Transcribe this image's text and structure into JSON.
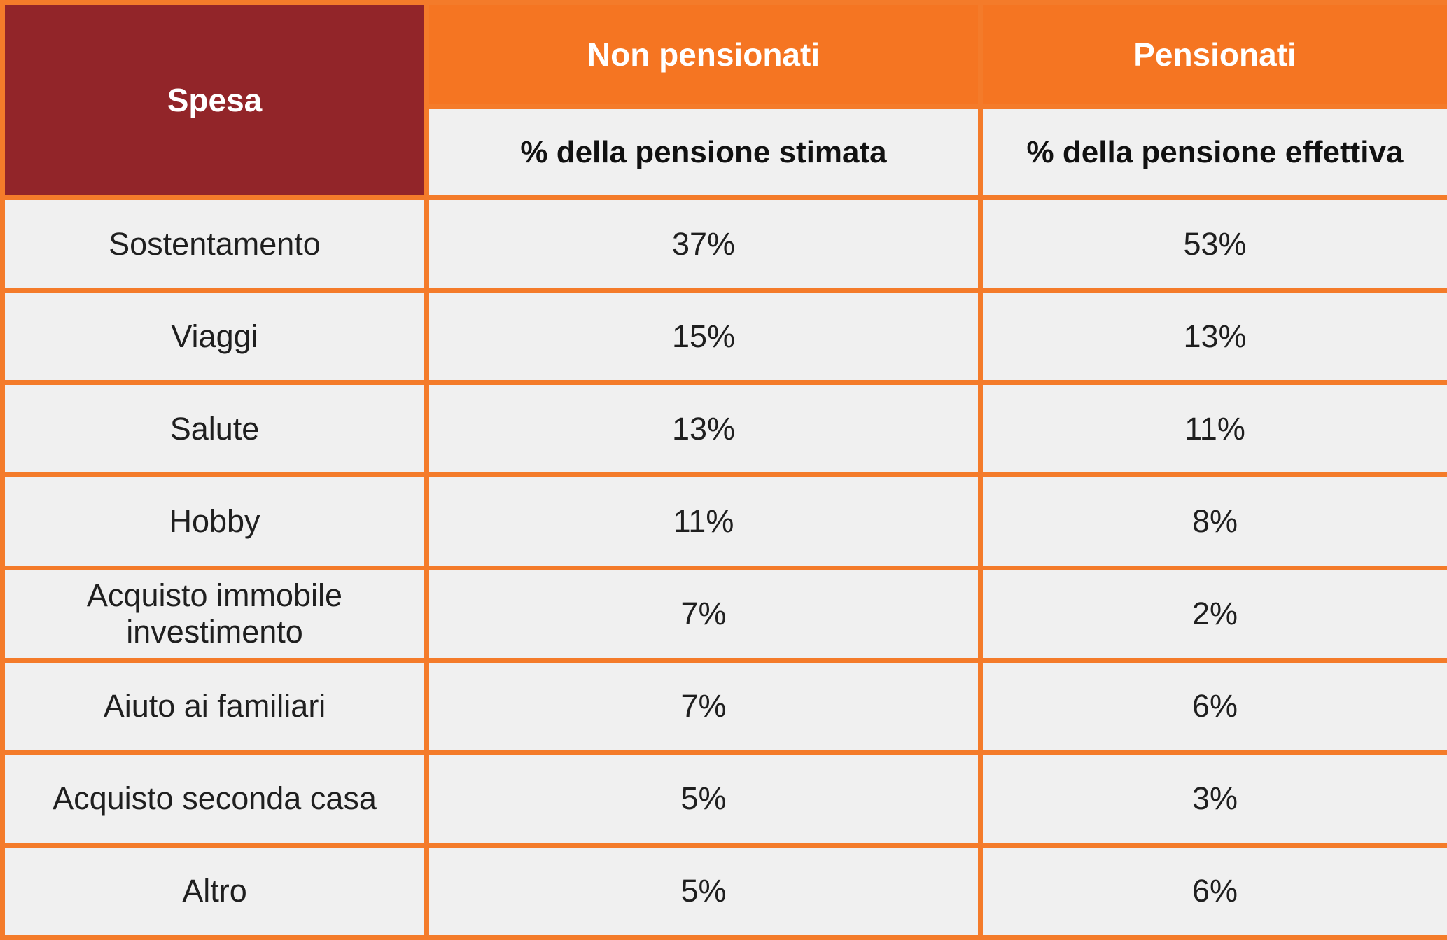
{
  "table": {
    "header": {
      "spesa_label": "Spesa",
      "group_non_pensionati": "Non pensionati",
      "group_pensionati": "Pensionati",
      "sub_non_pensionati": "% della pensione stimata",
      "sub_pensionati": "% della pensione effettiva"
    },
    "rows": [
      {
        "spesa": "Sostentamento",
        "non_pensionati": "37%",
        "pensionati": "53%"
      },
      {
        "spesa": "Viaggi",
        "non_pensionati": "15%",
        "pensionati": "13%"
      },
      {
        "spesa": "Salute",
        "non_pensionati": "13%",
        "pensionati": "11%"
      },
      {
        "spesa": "Hobby",
        "non_pensionati": "11%",
        "pensionati": "8%"
      },
      {
        "spesa": "Acquisto immobile investimento",
        "non_pensionati": "7%",
        "pensionati": "2%"
      },
      {
        "spesa": "Aiuto ai familiari",
        "non_pensionati": "7%",
        "pensionati": "6%"
      },
      {
        "spesa": "Acquisto seconda casa",
        "non_pensionati": "5%",
        "pensionati": "3%"
      },
      {
        "spesa": "Altro",
        "non_pensionati": "5%",
        "pensionati": "6%"
      }
    ]
  },
  "colors": {
    "header_spesa_bg": "#922529",
    "header_group_bg": "#f57522",
    "border": "#f47b2a",
    "cell_bg": "#f0f0f0"
  }
}
